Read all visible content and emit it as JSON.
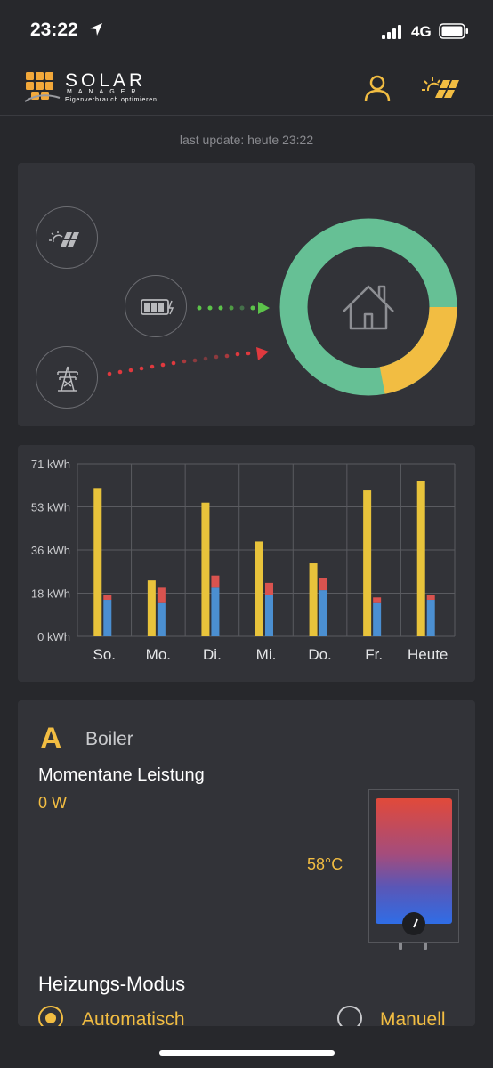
{
  "status_bar": {
    "time": "23:22",
    "network": "4G"
  },
  "header": {
    "logo_title": "SOLAR",
    "logo_sub": "MANAGER",
    "logo_tagline": "Eigenverbrauch optimieren"
  },
  "last_update": "last update: heute 23:22",
  "energy_flow": {
    "icons": [
      "solar-panel-icon",
      "battery-icon",
      "power-grid-icon",
      "house-icon"
    ],
    "donut": {
      "green_fraction": 0.78,
      "yellow_fraction": 0.22
    },
    "colors": {
      "green": "#66c095",
      "yellow": "#f2bd42",
      "battery_flow": "#5cc24a",
      "grid_flow": "#e0393e"
    }
  },
  "chart_data": {
    "type": "bar",
    "categories": [
      "So.",
      "Mo.",
      "Di.",
      "Mi.",
      "Do.",
      "Fr.",
      "Heute"
    ],
    "y_tick_labels": [
      "71 kWh",
      "53 kWh",
      "36 kWh",
      "18 kWh",
      "0 kWh"
    ],
    "ylim": [
      0,
      71
    ],
    "series": [
      {
        "color": "#e8c33b",
        "values": [
          61,
          23,
          55,
          39,
          30,
          60,
          64
        ]
      },
      {
        "color": "#4b8fd1",
        "stack_bottom": true,
        "values": [
          15,
          14,
          20,
          17,
          19,
          14,
          15
        ]
      },
      {
        "color": "#d9534f",
        "stack_top": true,
        "values": [
          2,
          6,
          5,
          5,
          5,
          2,
          2
        ]
      }
    ],
    "grid": true
  },
  "boiler": {
    "letter": "A",
    "title": "Boiler",
    "power_label": "Momentane Leistung",
    "power_value": "0 W",
    "temperature": "58°C",
    "mode_title": "Heizungs-Modus",
    "modes": [
      {
        "label": "Automatisch",
        "selected": true
      },
      {
        "label": "Manuell",
        "selected": false
      }
    ]
  }
}
